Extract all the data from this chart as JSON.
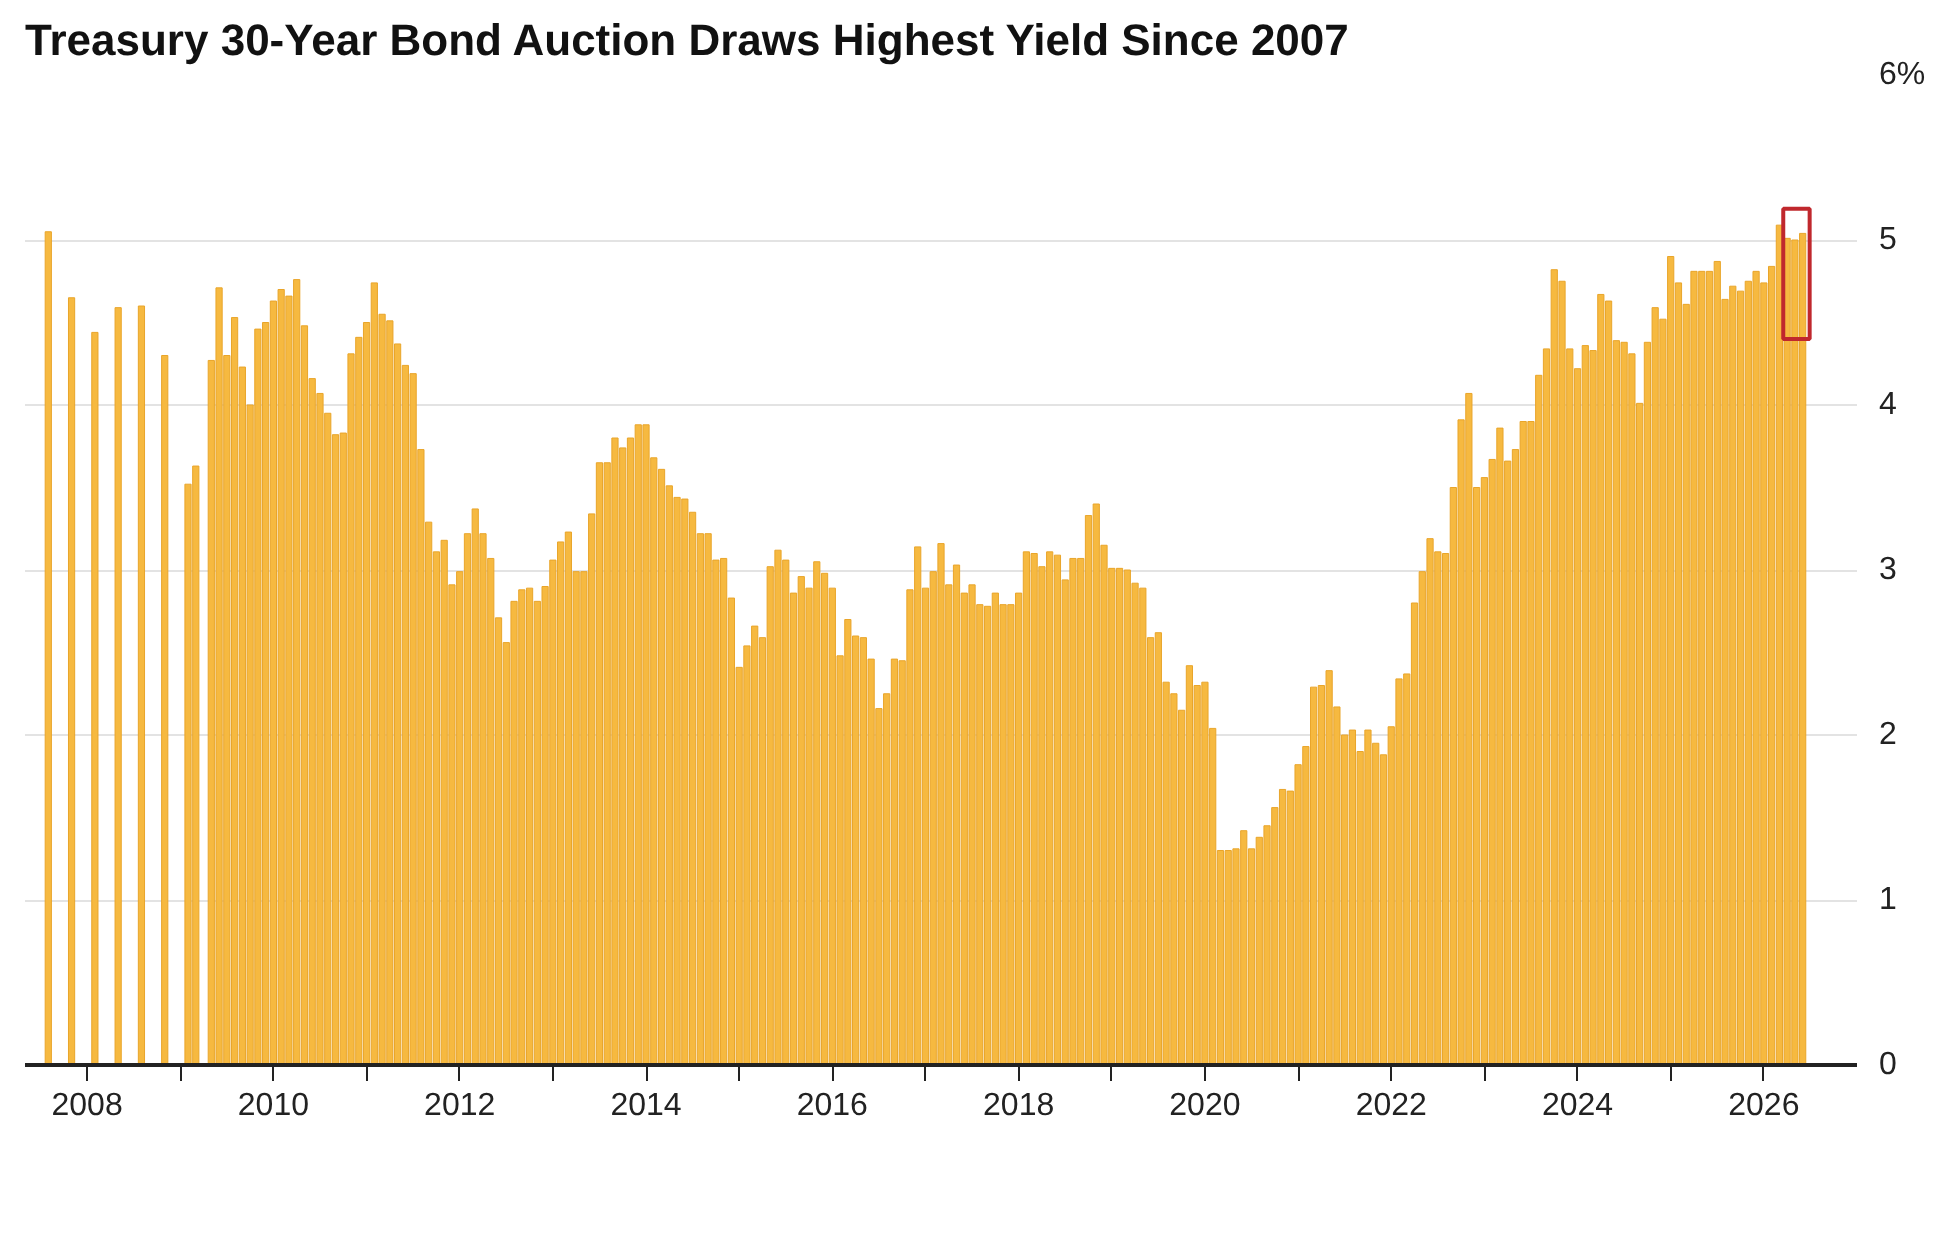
{
  "chart_data": {
    "type": "bar",
    "title": "Treasury 30-Year Bond Auction Draws Highest Yield Since 2007",
    "x": [
      "2007-08",
      "2007-11",
      "2008-02",
      "2008-05",
      "2008-08",
      "2008-11",
      "2009-02",
      "2009-03",
      "2009-05",
      "2009-06",
      "2009-07",
      "2009-08",
      "2009-09",
      "2009-10",
      "2009-11",
      "2009-12",
      "2010-01",
      "2010-02",
      "2010-03",
      "2010-04",
      "2010-05",
      "2010-06",
      "2010-07",
      "2010-08",
      "2010-09",
      "2010-10",
      "2010-11",
      "2010-12",
      "2011-01",
      "2011-02",
      "2011-03",
      "2011-04",
      "2011-05",
      "2011-06",
      "2011-07",
      "2011-08",
      "2011-09",
      "2011-10",
      "2011-11",
      "2011-12",
      "2012-01",
      "2012-02",
      "2012-03",
      "2012-04",
      "2012-05",
      "2012-06",
      "2012-07",
      "2012-08",
      "2012-09",
      "2012-10",
      "2012-11",
      "2012-12",
      "2013-01",
      "2013-02",
      "2013-03",
      "2013-04",
      "2013-05",
      "2013-06",
      "2013-07",
      "2013-08",
      "2013-09",
      "2013-10",
      "2013-11",
      "2013-12",
      "2014-01",
      "2014-02",
      "2014-03",
      "2014-04",
      "2014-05",
      "2014-06",
      "2014-07",
      "2014-08",
      "2014-09",
      "2014-10",
      "2014-11",
      "2014-12",
      "2015-01",
      "2015-02",
      "2015-03",
      "2015-04",
      "2015-05",
      "2015-06",
      "2015-07",
      "2015-08",
      "2015-09",
      "2015-10",
      "2015-11",
      "2015-12",
      "2016-01",
      "2016-02",
      "2016-03",
      "2016-04",
      "2016-05",
      "2016-06",
      "2016-07",
      "2016-08",
      "2016-09",
      "2016-10",
      "2016-11",
      "2016-12",
      "2017-01",
      "2017-02",
      "2017-03",
      "2017-04",
      "2017-05",
      "2017-06",
      "2017-07",
      "2017-08",
      "2017-09",
      "2017-10",
      "2017-11",
      "2017-12",
      "2018-01",
      "2018-02",
      "2018-03",
      "2018-04",
      "2018-05",
      "2018-06",
      "2018-07",
      "2018-08",
      "2018-09",
      "2018-10",
      "2018-11",
      "2018-12",
      "2019-01",
      "2019-02",
      "2019-03",
      "2019-04",
      "2019-05",
      "2019-06",
      "2019-07",
      "2019-08",
      "2019-09",
      "2019-10",
      "2019-11",
      "2019-12",
      "2020-01",
      "2020-02",
      "2020-03",
      "2020-04",
      "2020-05",
      "2020-06",
      "2020-07",
      "2020-08",
      "2020-09",
      "2020-10",
      "2020-11",
      "2020-12",
      "2021-01",
      "2021-02",
      "2021-03",
      "2021-04",
      "2021-05",
      "2021-06",
      "2021-07",
      "2021-08",
      "2021-09",
      "2021-10",
      "2021-11",
      "2021-12",
      "2022-01",
      "2022-02",
      "2022-03",
      "2022-04",
      "2022-05",
      "2022-06",
      "2022-07",
      "2022-08",
      "2022-09",
      "2022-10",
      "2022-11",
      "2022-12",
      "2023-01",
      "2023-02",
      "2023-03",
      "2023-04",
      "2023-05",
      "2023-06",
      "2023-07",
      "2023-08",
      "2023-09",
      "2023-10",
      "2023-11",
      "2023-12",
      "2024-01",
      "2024-02",
      "2024-03",
      "2024-04",
      "2024-05",
      "2024-06",
      "2024-07",
      "2024-08",
      "2024-09",
      "2024-10",
      "2024-11",
      "2024-12",
      "2025-01",
      "2025-02",
      "2025-03",
      "2025-04",
      "2025-05",
      "2025-06",
      "2025-07",
      "2025-08",
      "2025-09",
      "2025-10",
      "2025-11",
      "2025-12",
      "2026-01",
      "2026-02",
      "2026-03",
      "2026-04",
      "2026-05",
      "2026-06"
    ],
    "values": [
      5.05,
      4.65,
      4.44,
      4.59,
      4.6,
      4.3,
      3.52,
      3.63,
      4.27,
      4.71,
      4.3,
      4.53,
      4.23,
      4.0,
      4.46,
      4.5,
      4.63,
      4.7,
      4.66,
      4.76,
      4.48,
      4.16,
      4.07,
      3.95,
      3.82,
      3.83,
      4.31,
      4.41,
      4.5,
      4.74,
      4.55,
      4.51,
      4.37,
      4.24,
      4.19,
      3.73,
      3.29,
      3.11,
      3.18,
      2.91,
      2.99,
      3.22,
      3.37,
      3.22,
      3.07,
      2.71,
      2.56,
      2.81,
      2.88,
      2.89,
      2.81,
      2.9,
      3.06,
      3.17,
      3.23,
      2.99,
      2.99,
      3.34,
      3.65,
      3.65,
      3.8,
      3.74,
      3.8,
      3.88,
      3.88,
      3.68,
      3.61,
      3.51,
      3.44,
      3.43,
      3.35,
      3.22,
      3.22,
      3.06,
      3.07,
      2.83,
      2.41,
      2.54,
      2.66,
      2.59,
      3.02,
      3.12,
      3.06,
      2.86,
      2.96,
      2.89,
      3.05,
      2.98,
      2.89,
      2.48,
      2.7,
      2.6,
      2.59,
      2.46,
      2.16,
      2.25,
      2.46,
      2.45,
      2.88,
      3.14,
      2.89,
      2.99,
      3.16,
      2.91,
      3.03,
      2.86,
      2.91,
      2.79,
      2.78,
      2.86,
      2.79,
      2.79,
      2.86,
      3.11,
      3.1,
      3.02,
      3.11,
      3.09,
      2.94,
      3.07,
      3.07,
      3.33,
      3.4,
      3.15,
      3.01,
      3.01,
      3.0,
      2.92,
      2.89,
      2.59,
      2.62,
      2.32,
      2.25,
      2.15,
      2.42,
      2.3,
      2.32,
      2.04,
      1.3,
      1.3,
      1.31,
      1.42,
      1.31,
      1.38,
      1.45,
      1.56,
      1.67,
      1.66,
      1.82,
      1.93,
      2.29,
      2.3,
      2.39,
      2.17,
      2.0,
      2.03,
      1.9,
      2.03,
      1.95,
      1.88,
      2.05,
      2.34,
      2.37,
      2.8,
      2.99,
      3.19,
      3.11,
      3.1,
      3.5,
      3.91,
      4.07,
      3.5,
      3.56,
      3.67,
      3.86,
      3.66,
      3.73,
      3.9,
      3.9,
      4.18,
      4.34,
      4.82,
      4.75,
      4.34,
      4.22,
      4.36,
      4.33,
      4.67,
      4.63,
      4.39,
      4.38,
      4.31,
      4.01,
      4.38,
      4.59,
      4.52,
      4.9,
      4.74,
      4.61,
      4.81,
      4.81,
      4.81,
      4.87,
      4.64,
      4.72,
      4.69,
      4.75,
      4.81,
      4.74,
      4.84,
      5.09,
      5.01,
      5.0,
      5.04
    ],
    "color": "#f6b940",
    "xlim": [
      "2007-05",
      "2027-01"
    ],
    "xticks": [
      {
        "value": "2008",
        "label": "2008"
      },
      {
        "value": "2009",
        "label": null
      },
      {
        "value": "2010",
        "label": "2010"
      },
      {
        "value": "2011",
        "label": null
      },
      {
        "value": "2012",
        "label": "2012"
      },
      {
        "value": "2013",
        "label": null
      },
      {
        "value": "2014",
        "label": "2014"
      },
      {
        "value": "2015",
        "label": null
      },
      {
        "value": "2016",
        "label": "2016"
      },
      {
        "value": "2017",
        "label": null
      },
      {
        "value": "2018",
        "label": "2018"
      },
      {
        "value": "2019",
        "label": null
      },
      {
        "value": "2020",
        "label": "2020"
      },
      {
        "value": "2021",
        "label": null
      },
      {
        "value": "2022",
        "label": "2022"
      },
      {
        "value": "2023",
        "label": null
      },
      {
        "value": "2024",
        "label": "2024"
      },
      {
        "value": "2025",
        "label": null
      },
      {
        "value": "2026",
        "label": "2026"
      }
    ],
    "ylim": [
      0,
      6
    ],
    "yticks": [
      0,
      1,
      2,
      3,
      4,
      5,
      {
        "value": 6,
        "label": "6%"
      }
    ],
    "grid": "y"
  }
}
